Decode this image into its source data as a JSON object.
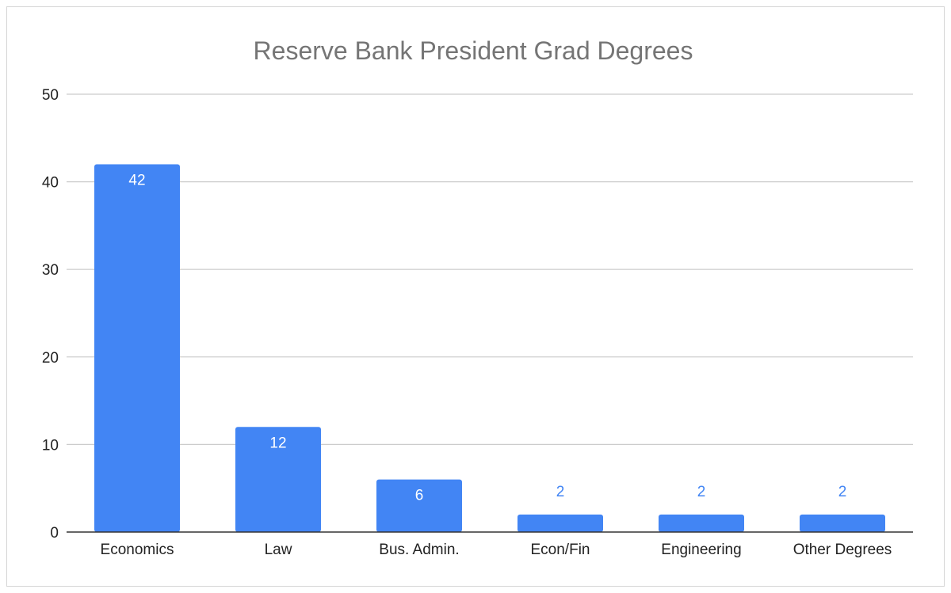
{
  "chart_data": {
    "type": "bar",
    "title": "Reserve Bank President Grad Degrees",
    "xlabel": "",
    "ylabel": "",
    "categories": [
      "Economics",
      "Law",
      "Bus. Admin.",
      "Econ/Fin",
      "Engineering",
      "Other Degrees"
    ],
    "values": [
      42,
      12,
      6,
      2,
      2,
      2
    ],
    "data_labels": [
      "42",
      "12",
      "6",
      "2",
      "2",
      "2"
    ],
    "ylim": [
      0,
      50
    ],
    "yticks": [
      0,
      10,
      20,
      30,
      40,
      50
    ],
    "ytick_labels": [
      "0",
      "10",
      "20",
      "30",
      "40",
      "50"
    ],
    "grid": true,
    "legend": "none",
    "colors": {
      "bar": "#4285f4",
      "label_inside": "#ffffff",
      "label_outside": "#4285f4",
      "grid": "#cccccc",
      "axis": "#333333"
    }
  }
}
